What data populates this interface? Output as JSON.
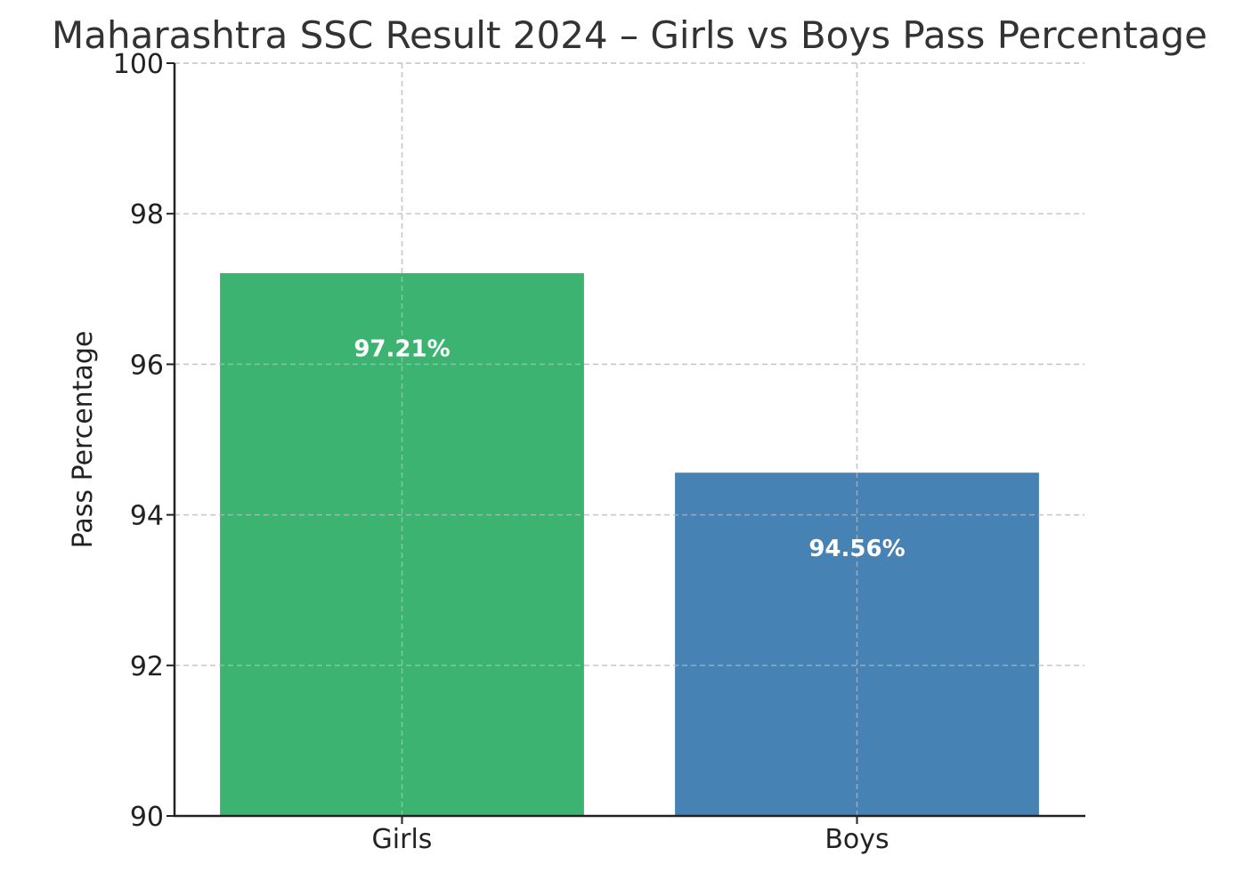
{
  "chart_data": {
    "type": "bar",
    "title": "Maharashtra SSC Result 2024 – Girls vs Boys Pass Percentage",
    "xlabel": "",
    "ylabel": "Pass Percentage",
    "categories": [
      "Girls",
      "Boys"
    ],
    "values": [
      97.21,
      94.56
    ],
    "data_labels": [
      "97.21%",
      "94.56%"
    ],
    "colors": [
      "#3cb371",
      "#4682b4"
    ],
    "ylim": [
      90,
      100
    ],
    "yticks": [
      90,
      92,
      94,
      96,
      98,
      100
    ],
    "grid": true,
    "legend": "none"
  }
}
